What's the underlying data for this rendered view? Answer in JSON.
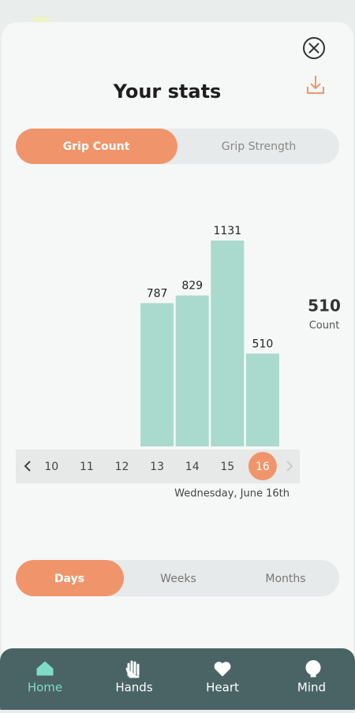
{
  "header": {
    "title": "Your stats"
  },
  "metric_tabs": [
    "Grip Count",
    "Grip Strength"
  ],
  "chart_data": {
    "type": "bar",
    "categories": [
      "10",
      "11",
      "12",
      "13",
      "14",
      "15",
      "16"
    ],
    "values": [
      null,
      null,
      null,
      787,
      829,
      1131,
      510
    ],
    "color": "#a9dacd"
  },
  "selected": {
    "value": 510,
    "unit": "Count",
    "date": "Wednesday, June 16th",
    "index": 6
  },
  "range_tabs": [
    "Days",
    "Weeks",
    "Months"
  ],
  "nav": [
    "Home",
    "Hands",
    "Heart",
    "Mind"
  ]
}
